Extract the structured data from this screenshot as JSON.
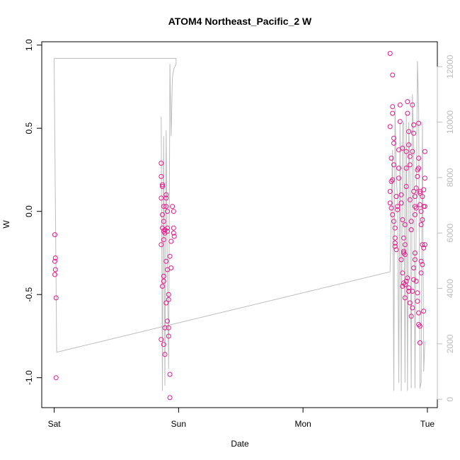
{
  "chart_data": {
    "type": "scatter",
    "title": "ATOM4 Northeast_Pacific_2 W",
    "xlabel": "Date",
    "ylabel": "W",
    "x_ticks": [
      {
        "value": 0,
        "label": "Sat"
      },
      {
        "value": 1,
        "label": "Sun"
      },
      {
        "value": 2,
        "label": "Mon"
      },
      {
        "value": 3,
        "label": "Tue"
      }
    ],
    "xlim": [
      -0.1,
      3.08
    ],
    "ylim": [
      -1.18,
      1.02
    ],
    "y_ticks": [
      -1.0,
      -0.5,
      0.0,
      0.5,
      1.0
    ],
    "y_tick_labels": [
      "-1.0",
      "-0.5",
      "0.0",
      "0.5",
      "1.0"
    ],
    "y2lim": [
      -300,
      12900
    ],
    "y2_ticks": [
      0,
      2000,
      4000,
      6000,
      8000,
      10000,
      12000
    ],
    "y2_tick_labels": [
      "0",
      "2000",
      "4000",
      "6000",
      "8000",
      "10000",
      "12000"
    ],
    "grid": false,
    "legend": "none",
    "series": [
      {
        "type": "scatter",
        "color": "#e8178a",
        "points": [
          [
            0.005,
            -0.14
          ],
          [
            0.005,
            -0.3
          ],
          [
            0.01,
            -0.28
          ],
          [
            0.01,
            -0.35
          ],
          [
            0.005,
            -0.38
          ],
          [
            0.015,
            -0.52
          ],
          [
            0.015,
            -1.0
          ],
          [
            0.86,
            0.29
          ],
          [
            0.86,
            0.21
          ],
          [
            0.87,
            0.16
          ],
          [
            0.87,
            0.15
          ],
          [
            0.86,
            0.08
          ],
          [
            0.88,
            0.03
          ],
          [
            0.87,
            -0.02
          ],
          [
            0.88,
            -0.06
          ],
          [
            0.87,
            -0.1
          ],
          [
            0.88,
            -0.12
          ],
          [
            0.86,
            -0.2
          ],
          [
            0.89,
            -0.13
          ],
          [
            0.88,
            -0.17
          ],
          [
            0.89,
            -0.11
          ],
          [
            0.9,
            0.1
          ],
          [
            0.9,
            0.08
          ],
          [
            0.9,
            0.03
          ],
          [
            0.91,
            0.0
          ],
          [
            0.91,
            -0.1
          ],
          [
            0.91,
            -0.12
          ],
          [
            0.9,
            -0.3
          ],
          [
            0.91,
            -0.35
          ],
          [
            0.93,
            -0.27
          ],
          [
            0.94,
            -0.34
          ],
          [
            0.94,
            -0.18
          ],
          [
            0.95,
            0.03
          ],
          [
            0.96,
            0.0
          ],
          [
            0.96,
            -0.1
          ],
          [
            0.96,
            -0.13
          ],
          [
            0.965,
            -0.15
          ],
          [
            0.88,
            -0.39
          ],
          [
            0.88,
            -0.42
          ],
          [
            0.87,
            -0.45
          ],
          [
            0.9,
            -0.55
          ],
          [
            0.92,
            -0.5
          ],
          [
            0.92,
            -0.53
          ],
          [
            0.91,
            -0.66
          ],
          [
            0.89,
            -0.7
          ],
          [
            0.92,
            -0.7
          ],
          [
            0.86,
            -0.77
          ],
          [
            0.88,
            -0.8
          ],
          [
            0.92,
            -0.75
          ],
          [
            0.89,
            -0.86
          ],
          [
            0.93,
            -0.98
          ],
          [
            0.93,
            -1.12
          ],
          [
            2.7,
            0.95
          ],
          [
            2.72,
            0.82
          ],
          [
            2.72,
            0.63
          ],
          [
            2.72,
            0.59
          ],
          [
            2.7,
            0.51
          ],
          [
            2.73,
            0.44
          ],
          [
            2.73,
            0.41
          ],
          [
            2.71,
            0.32
          ],
          [
            2.73,
            0.28
          ],
          [
            2.72,
            0.19
          ],
          [
            2.71,
            0.18
          ],
          [
            2.7,
            0.12
          ],
          [
            2.7,
            0.05
          ],
          [
            2.71,
            0.02
          ],
          [
            2.72,
            -0.02
          ],
          [
            2.73,
            -0.06
          ],
          [
            2.74,
            -0.1
          ],
          [
            2.74,
            -0.16
          ],
          [
            2.74,
            -0.19
          ],
          [
            2.74,
            -0.21
          ],
          [
            2.75,
            -0.23
          ],
          [
            2.75,
            0.09
          ],
          [
            2.76,
            0.03
          ],
          [
            2.76,
            0.01
          ],
          [
            2.77,
            0.2
          ],
          [
            2.77,
            0.26
          ],
          [
            2.77,
            0.37
          ],
          [
            2.78,
            0.54
          ],
          [
            2.78,
            0.64
          ],
          [
            2.8,
            0.38
          ],
          [
            2.79,
            0.1
          ],
          [
            2.79,
            0.05
          ],
          [
            2.8,
            -0.05
          ],
          [
            2.81,
            -0.16
          ],
          [
            2.81,
            -0.24
          ],
          [
            2.81,
            -0.25
          ],
          [
            2.82,
            -0.26
          ],
          [
            2.82,
            -0.2
          ],
          [
            2.82,
            -0.08
          ],
          [
            2.83,
            0.15
          ],
          [
            2.83,
            0.26
          ],
          [
            2.83,
            0.36
          ],
          [
            2.84,
            0.59
          ],
          [
            2.84,
            0.66
          ],
          [
            2.85,
            0.48
          ],
          [
            2.85,
            0.4
          ],
          [
            2.86,
            0.33
          ],
          [
            2.86,
            0.28
          ],
          [
            2.86,
            0.07
          ],
          [
            2.87,
            -0.06
          ],
          [
            2.87,
            -0.11
          ],
          [
            2.88,
            0.36
          ],
          [
            2.88,
            0.64
          ],
          [
            2.89,
            0.52
          ],
          [
            2.89,
            0.47
          ],
          [
            2.89,
            0.12
          ],
          [
            2.9,
            0.09
          ],
          [
            2.9,
            0.03
          ],
          [
            2.9,
            -0.02
          ],
          [
            2.91,
            0.02
          ],
          [
            2.91,
            0.14
          ],
          [
            2.92,
            0.21
          ],
          [
            2.92,
            0.25
          ],
          [
            2.93,
            0.26
          ],
          [
            2.93,
            0.32
          ],
          [
            2.93,
            0.53
          ],
          [
            2.94,
            0.11
          ],
          [
            2.94,
            0.12
          ],
          [
            2.94,
            0.04
          ],
          [
            2.95,
            0.0
          ],
          [
            2.96,
            -0.05
          ],
          [
            2.95,
            -0.08
          ],
          [
            2.96,
            0.09
          ],
          [
            2.97,
            0.13
          ],
          [
            2.97,
            0.03
          ],
          [
            2.98,
            0.03
          ],
          [
            2.98,
            0.2
          ],
          [
            2.98,
            0.36
          ],
          [
            2.79,
            -0.29
          ],
          [
            2.8,
            -0.37
          ],
          [
            2.81,
            -0.43
          ],
          [
            2.8,
            -0.45
          ],
          [
            2.82,
            -0.44
          ],
          [
            2.82,
            -0.52
          ],
          [
            2.83,
            -0.42
          ],
          [
            2.84,
            -0.4
          ],
          [
            2.85,
            -0.46
          ],
          [
            2.85,
            -0.48
          ],
          [
            2.86,
            -0.55
          ],
          [
            2.87,
            -0.63
          ],
          [
            2.88,
            -0.58
          ],
          [
            2.88,
            -0.48
          ],
          [
            2.89,
            -0.41
          ],
          [
            2.89,
            -0.34
          ],
          [
            2.9,
            -0.29
          ],
          [
            2.9,
            -0.25
          ],
          [
            2.91,
            -0.42
          ],
          [
            2.92,
            -0.49
          ],
          [
            2.92,
            -0.54
          ],
          [
            2.93,
            -0.61
          ],
          [
            2.93,
            -0.68
          ],
          [
            2.94,
            -0.69
          ],
          [
            2.94,
            -0.79
          ],
          [
            2.95,
            -0.3
          ],
          [
            2.95,
            -0.37
          ],
          [
            2.96,
            -0.32
          ],
          [
            2.96,
            -0.2
          ],
          [
            2.97,
            -0.22
          ],
          [
            2.97,
            -0.6
          ],
          [
            2.98,
            -0.2
          ]
        ]
      },
      {
        "type": "line",
        "axis": "right",
        "color": "#bdbdbd",
        "points": [
          [
            0.0,
            12300
          ],
          [
            0.0,
            11900
          ],
          [
            0.02,
            1700
          ],
          [
            2.7,
            4600
          ],
          [
            2.72,
            9000
          ],
          [
            2.73,
            300
          ],
          [
            2.74,
            10500
          ],
          [
            2.75,
            8000
          ],
          [
            2.76,
            7300
          ],
          [
            2.77,
            600
          ],
          [
            2.78,
            10000
          ],
          [
            2.79,
            300
          ],
          [
            2.8,
            9900
          ],
          [
            2.81,
            10000
          ],
          [
            2.82,
            600
          ],
          [
            2.83,
            10300
          ],
          [
            2.84,
            300
          ],
          [
            2.85,
            10000
          ],
          [
            2.86,
            8000
          ],
          [
            2.87,
            400
          ],
          [
            2.88,
            11000
          ],
          [
            2.89,
            9100
          ],
          [
            2.9,
            400
          ],
          [
            2.91,
            6500
          ],
          [
            2.92,
            12200
          ],
          [
            2.93,
            10500
          ],
          [
            2.94,
            400
          ],
          [
            2.95,
            600
          ],
          [
            2.96,
            10000
          ],
          [
            2.97,
            1000
          ],
          [
            2.98,
            2100
          ]
        ]
      },
      {
        "type": "line",
        "axis": "right",
        "color": "#bdbdbd",
        "points": [
          [
            0.86,
            10200
          ],
          [
            0.87,
            300
          ],
          [
            0.88,
            9500
          ],
          [
            0.89,
            500
          ],
          [
            0.9,
            9700
          ],
          [
            0.91,
            4500
          ],
          [
            0.92,
            1100
          ],
          [
            0.93,
            12100
          ],
          [
            0.94,
            9500
          ],
          [
            0.95,
            11600
          ],
          [
            0.96,
            11900
          ],
          [
            0.97,
            12000
          ],
          [
            0.98,
            12100
          ],
          [
            0.98,
            12300
          ],
          [
            0.0,
            12300
          ]
        ]
      }
    ]
  }
}
